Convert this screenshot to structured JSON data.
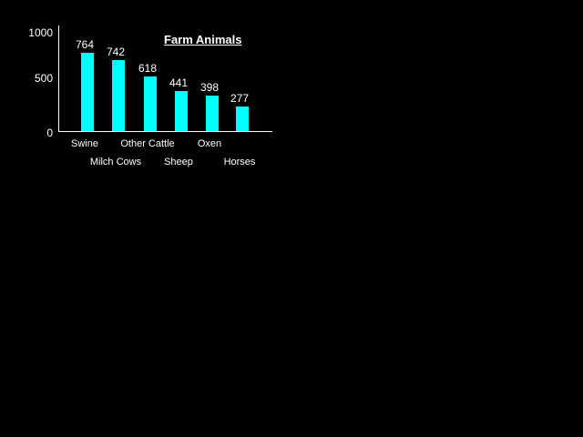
{
  "chart_data": {
    "type": "bar",
    "title": "Farm Animals",
    "categories": [
      "Swine",
      "Milch Cows",
      "Other Cattle",
      "Sheep",
      "Oxen",
      "Horses"
    ],
    "values": [
      764,
      742,
      618,
      441,
      398,
      277
    ],
    "value_labels": [
      "764",
      "742",
      "618",
      "441",
      "398",
      "277"
    ],
    "y_tick_labels": [
      "1000",
      "500",
      "0"
    ],
    "y_ticks": [
      1000,
      500,
      0
    ],
    "ylim": [
      0,
      1000
    ],
    "xlabel": "",
    "ylabel": "",
    "grid": false,
    "legend": "none",
    "category_label_rows": [
      1,
      2,
      1,
      2,
      1,
      2
    ],
    "colors": {
      "background": "#000000",
      "bar": "#00ffff",
      "axis": "#ffffff",
      "text": "#ffffff"
    }
  }
}
